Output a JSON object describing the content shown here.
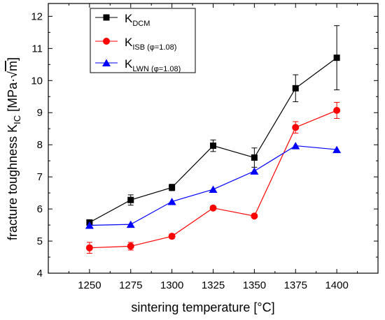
{
  "chart_data": {
    "type": "line",
    "xlabel": "sintering temperature [°C]",
    "ylabel_parts": {
      "main": "fracture toughness K",
      "sub": "IC",
      "unit_open": " [MPa·",
      "root": "√",
      "root_arg": "m",
      "unit_close": "]"
    },
    "x": [
      1250,
      1275,
      1300,
      1325,
      1350,
      1375,
      1400
    ],
    "xticks": [
      "1250",
      "1275",
      "1300",
      "1325",
      "1350",
      "1375",
      "1400"
    ],
    "xlim": [
      1225,
      1425
    ],
    "ylim": [
      4,
      12.4
    ],
    "yticks": [
      "4",
      "5",
      "6",
      "7",
      "8",
      "9",
      "10",
      "11",
      "12"
    ],
    "grid": false,
    "legend_position": "top-left",
    "series": [
      {
        "key": "dcm",
        "legend_main": "K",
        "legend_sub": "DCM",
        "legend_cond": "",
        "color": "#000000",
        "marker": "square",
        "values": [
          5.58,
          6.28,
          6.67,
          7.97,
          7.6,
          9.76,
          10.71
        ],
        "errors": [
          0.05,
          0.16,
          0.1,
          0.18,
          0.3,
          0.42,
          1.0
        ]
      },
      {
        "key": "isb",
        "legend_main": "K",
        "legend_sub": "ISB",
        "legend_cond": "(φ=1.08)",
        "color": "#ff0000",
        "marker": "circle",
        "values": [
          4.79,
          4.84,
          5.15,
          6.03,
          5.78,
          8.54,
          9.07
        ],
        "errors": [
          0.17,
          0.12,
          0.07,
          0.03,
          0.03,
          0.18,
          0.25
        ]
      },
      {
        "key": "lwn",
        "legend_main": "K",
        "legend_sub": "LWN",
        "legend_cond": "(φ=1.08)",
        "color": "#0000ff",
        "marker": "triangle",
        "values": [
          5.49,
          5.52,
          6.23,
          6.61,
          7.18,
          7.97,
          7.85
        ],
        "errors": [
          0,
          0,
          0,
          0,
          0,
          0,
          0
        ]
      }
    ]
  }
}
